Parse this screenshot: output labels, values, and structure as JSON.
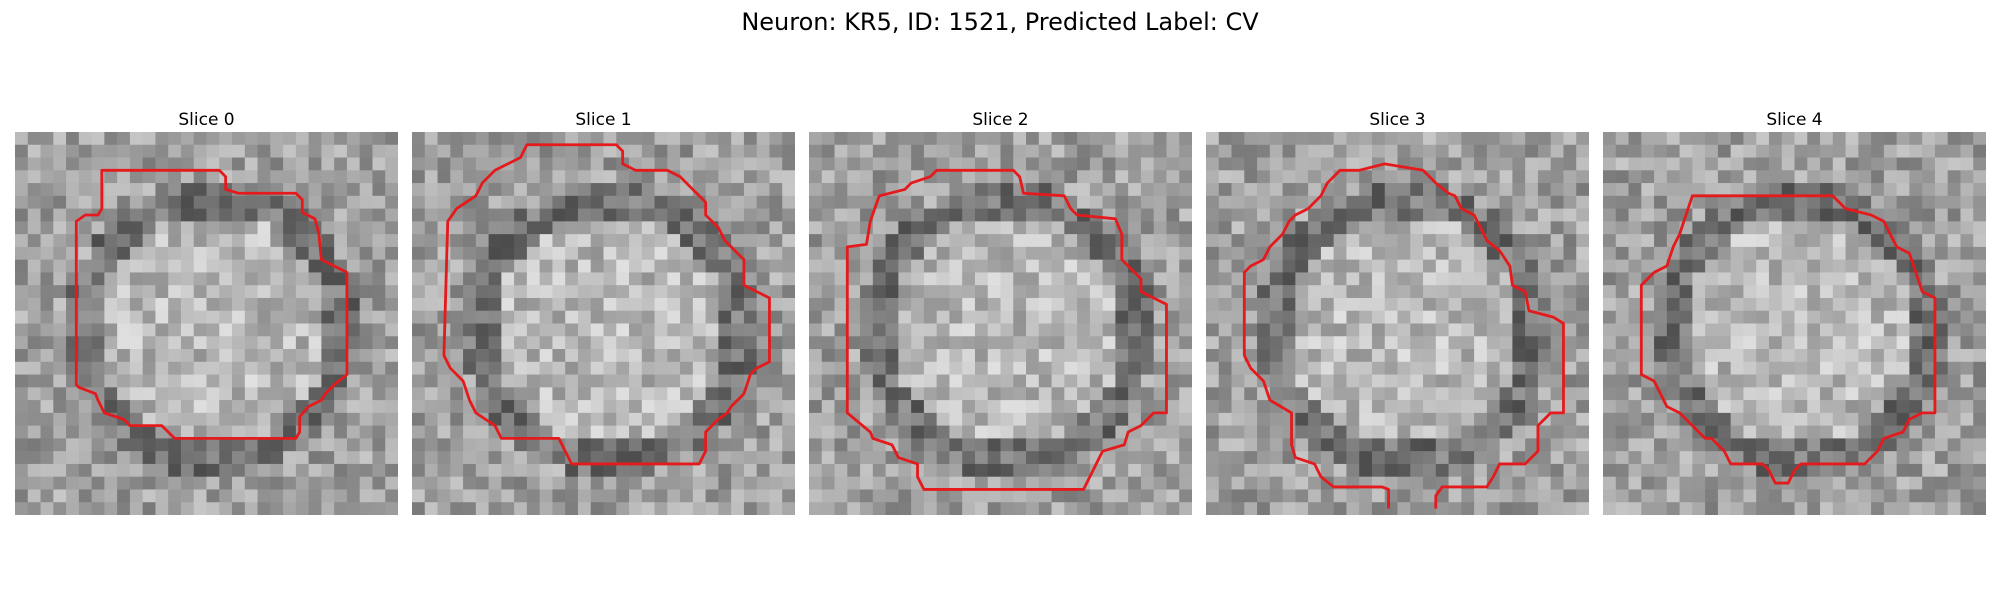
{
  "title": "Neuron: KR5, ID: 1521, Predicted Label: CV",
  "contour_color": "#e41a1c",
  "slices": [
    {
      "label": "Slice 0"
    },
    {
      "label": "Slice 1"
    },
    {
      "label": "Slice 2"
    },
    {
      "label": "Slice 3"
    },
    {
      "label": "Slice 4"
    }
  ]
}
